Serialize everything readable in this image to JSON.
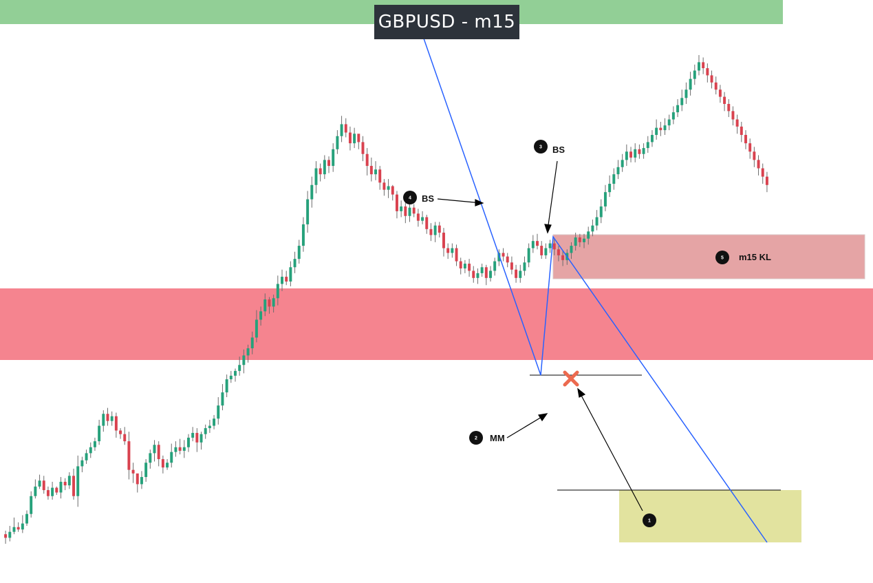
{
  "title": "GBPUSD - m15",
  "colors": {
    "bull": "#26a17b",
    "bear": "#d9424f",
    "trendline": "#2962ff",
    "supply_zone_top": "#92cf96",
    "supply_zone_h4": "#f5848f",
    "kl_zone": "#e5a4a5",
    "target_zone": "#e2e39f",
    "invalid_mark": "#ec6a4f"
  },
  "annotations": [
    {
      "number": "1",
      "text": ""
    },
    {
      "number": "2",
      "text": "MM"
    },
    {
      "number": "3",
      "text": "BS"
    },
    {
      "number": "4",
      "text": "BS"
    },
    {
      "number": "5",
      "text": "m15 KL"
    }
  ],
  "chart_data": {
    "type": "candlestick",
    "title": "GBPUSD - m15",
    "grid": false,
    "candles": [
      [
        97,
        94,
        89,
        100
      ],
      [
        94,
        99,
        91,
        104
      ],
      [
        99,
        103,
        97,
        111
      ],
      [
        103,
        101,
        99,
        107
      ],
      [
        101,
        106,
        98,
        113
      ],
      [
        106,
        114,
        104,
        117
      ],
      [
        114,
        129,
        111,
        133
      ],
      [
        129,
        137,
        127,
        143
      ],
      [
        137,
        142,
        135,
        147
      ],
      [
        142,
        134,
        131,
        146
      ],
      [
        134,
        129,
        126,
        137
      ],
      [
        129,
        136,
        126,
        141
      ],
      [
        136,
        132,
        130,
        137
      ],
      [
        132,
        141,
        127,
        145
      ],
      [
        141,
        138,
        134,
        144
      ],
      [
        138,
        146,
        135,
        149
      ],
      [
        146,
        129,
        126,
        152
      ],
      [
        129,
        154,
        120,
        163
      ],
      [
        154,
        159,
        149,
        162
      ],
      [
        159,
        165,
        156,
        168
      ],
      [
        165,
        170,
        161,
        174
      ],
      [
        170,
        175,
        167,
        178
      ],
      [
        175,
        188,
        172,
        193
      ],
      [
        188,
        198,
        183,
        201
      ],
      [
        198,
        192,
        188,
        203
      ],
      [
        192,
        196,
        188,
        200
      ],
      [
        196,
        184,
        178,
        199
      ],
      [
        184,
        181,
        177,
        186
      ],
      [
        181,
        175,
        172,
        187
      ],
      [
        175,
        151,
        143,
        183
      ],
      [
        151,
        148,
        140,
        157
      ],
      [
        148,
        139,
        132,
        146
      ],
      [
        139,
        145,
        135,
        150
      ],
      [
        145,
        157,
        141,
        160
      ],
      [
        157,
        165,
        152,
        168
      ],
      [
        165,
        172,
        158,
        176
      ],
      [
        172,
        160,
        154,
        175
      ],
      [
        160,
        153,
        148,
        163
      ],
      [
        153,
        157,
        151,
        160
      ],
      [
        157,
        166,
        153,
        173
      ],
      [
        166,
        170,
        162,
        175
      ],
      [
        170,
        167,
        164,
        177
      ],
      [
        167,
        170,
        161,
        176
      ],
      [
        170,
        178,
        166,
        181
      ],
      [
        178,
        182,
        175,
        187
      ],
      [
        182,
        174,
        166,
        186
      ],
      [
        174,
        181,
        168,
        183
      ],
      [
        181,
        186,
        177,
        189
      ],
      [
        186,
        188,
        182,
        193
      ],
      [
        188,
        194,
        185,
        197
      ],
      [
        194,
        205,
        189,
        212
      ],
      [
        205,
        216,
        201,
        223
      ],
      [
        216,
        227,
        212,
        231
      ],
      [
        227,
        230,
        224,
        234
      ],
      [
        230,
        234,
        225,
        236
      ],
      [
        234,
        239,
        230,
        246
      ],
      [
        239,
        247,
        232,
        252
      ],
      [
        247,
        253,
        241,
        256
      ],
      [
        253,
        262,
        248,
        267
      ],
      [
        262,
        277,
        258,
        285
      ],
      [
        277,
        284,
        272,
        288
      ],
      [
        284,
        294,
        280,
        299
      ],
      [
        294,
        288,
        282,
        296
      ],
      [
        288,
        295,
        283,
        298
      ],
      [
        295,
        307,
        289,
        314
      ],
      [
        307,
        313,
        301,
        319
      ],
      [
        313,
        309,
        306,
        318
      ],
      [
        309,
        321,
        305,
        326
      ],
      [
        321,
        328,
        316,
        334
      ],
      [
        328,
        339,
        324,
        344
      ],
      [
        339,
        357,
        334,
        363
      ],
      [
        357,
        378,
        350,
        385
      ],
      [
        378,
        390,
        371,
        397
      ],
      [
        390,
        404,
        383,
        410
      ],
      [
        404,
        399,
        393,
        408
      ],
      [
        399,
        411,
        395,
        415
      ],
      [
        411,
        406,
        400,
        414
      ],
      [
        406,
        420,
        401,
        425
      ],
      [
        420,
        431,
        416,
        436
      ],
      [
        431,
        441,
        426,
        448
      ],
      [
        441,
        434,
        430,
        446
      ],
      [
        434,
        425,
        419,
        439
      ],
      [
        425,
        433,
        421,
        438
      ],
      [
        433,
        426,
        420,
        430
      ],
      [
        426,
        416,
        410,
        431
      ],
      [
        416,
        406,
        398,
        421
      ],
      [
        406,
        399,
        393,
        413
      ],
      [
        399,
        403,
        394,
        410
      ],
      [
        403,
        392,
        386,
        406
      ],
      [
        392,
        386,
        381,
        395
      ],
      [
        386,
        389,
        379,
        395
      ],
      [
        389,
        382,
        377,
        390
      ],
      [
        382,
        368,
        362,
        385
      ],
      [
        368,
        372,
        363,
        377
      ],
      [
        372,
        364,
        358,
        375
      ],
      [
        364,
        371,
        359,
        377
      ],
      [
        371,
        366,
        363,
        374
      ],
      [
        366,
        360,
        355,
        370
      ],
      [
        360,
        363,
        357,
        368
      ],
      [
        363,
        353,
        349,
        365
      ],
      [
        353,
        348,
        343,
        358
      ],
      [
        348,
        356,
        342,
        359
      ],
      [
        356,
        350,
        346,
        359
      ],
      [
        350,
        337,
        330,
        354
      ],
      [
        337,
        333,
        328,
        341
      ],
      [
        333,
        337,
        329,
        341
      ],
      [
        337,
        326,
        322,
        340
      ],
      [
        326,
        320,
        315,
        329
      ],
      [
        320,
        324,
        316,
        327
      ],
      [
        324,
        318,
        313,
        328
      ],
      [
        318,
        312,
        308,
        322
      ],
      [
        312,
        316,
        307,
        320
      ],
      [
        316,
        321,
        313,
        324
      ],
      [
        321,
        312,
        306,
        323
      ],
      [
        312,
        318,
        309,
        322
      ],
      [
        318,
        326,
        314,
        329
      ],
      [
        326,
        333,
        322,
        336
      ],
      [
        333,
        330,
        326,
        337
      ],
      [
        330,
        325,
        321,
        333
      ],
      [
        325,
        319,
        315,
        330
      ],
      [
        319,
        312,
        308,
        323
      ],
      [
        312,
        318,
        308,
        323
      ],
      [
        318,
        325,
        314,
        330
      ],
      [
        325,
        337,
        321,
        341
      ],
      [
        337,
        343,
        333,
        348
      ],
      [
        343,
        339,
        336,
        349
      ],
      [
        339,
        331,
        328,
        343
      ],
      [
        331,
        337,
        328,
        341
      ],
      [
        337,
        341,
        333,
        344
      ],
      [
        341,
        336,
        331,
        345
      ],
      [
        336,
        331,
        326,
        339
      ],
      [
        331,
        327,
        322,
        335
      ],
      [
        327,
        333,
        323,
        336
      ],
      [
        333,
        339,
        328,
        342
      ],
      [
        339,
        346,
        335,
        350
      ],
      [
        346,
        342,
        338,
        349
      ],
      [
        342,
        345,
        337,
        349
      ],
      [
        345,
        351,
        340,
        355
      ],
      [
        351,
        356,
        347,
        361
      ],
      [
        356,
        363,
        352,
        369
      ],
      [
        363,
        372,
        358,
        378
      ],
      [
        372,
        384,
        368,
        390
      ],
      [
        384,
        391,
        380,
        398
      ],
      [
        391,
        399,
        386,
        404
      ],
      [
        399,
        405,
        395,
        411
      ],
      [
        405,
        411,
        401,
        416
      ],
      [
        411,
        418,
        406,
        424
      ],
      [
        418,
        413,
        409,
        422
      ],
      [
        413,
        420,
        409,
        425
      ],
      [
        420,
        416,
        412,
        424
      ],
      [
        416,
        421,
        412,
        425
      ],
      [
        421,
        426,
        417,
        431
      ],
      [
        426,
        432,
        422,
        436
      ],
      [
        432,
        438,
        428,
        445
      ],
      [
        438,
        436,
        431,
        443
      ],
      [
        436,
        440,
        432,
        446
      ],
      [
        440,
        445,
        436,
        449
      ],
      [
        445,
        451,
        441,
        456
      ],
      [
        451,
        457,
        447,
        462
      ],
      [
        457,
        463,
        452,
        470
      ],
      [
        463,
        470,
        458,
        476
      ],
      [
        470,
        479,
        465,
        485
      ],
      [
        479,
        486,
        474,
        491
      ],
      [
        486,
        493,
        482,
        499
      ],
      [
        493,
        488,
        483,
        497
      ],
      [
        488,
        482,
        476,
        492
      ],
      [
        482,
        476,
        471,
        486
      ],
      [
        476,
        470,
        466,
        481
      ],
      [
        470,
        464,
        459,
        474
      ],
      [
        464,
        458,
        452,
        468
      ],
      [
        458,
        452,
        447,
        462
      ],
      [
        452,
        445,
        440,
        456
      ],
      [
        445,
        439,
        433,
        449
      ],
      [
        439,
        432,
        426,
        443
      ],
      [
        432,
        425,
        420,
        436
      ],
      [
        425,
        418,
        412,
        429
      ],
      [
        418,
        411,
        405,
        422
      ],
      [
        411,
        404,
        398,
        415
      ],
      [
        404,
        397,
        391,
        408
      ],
      [
        397,
        390,
        384,
        401
      ]
    ],
    "key_levels": [
      {
        "label": "m15 KL"
      },
      {
        "label": "BS"
      },
      {
        "label": "MM"
      }
    ]
  }
}
